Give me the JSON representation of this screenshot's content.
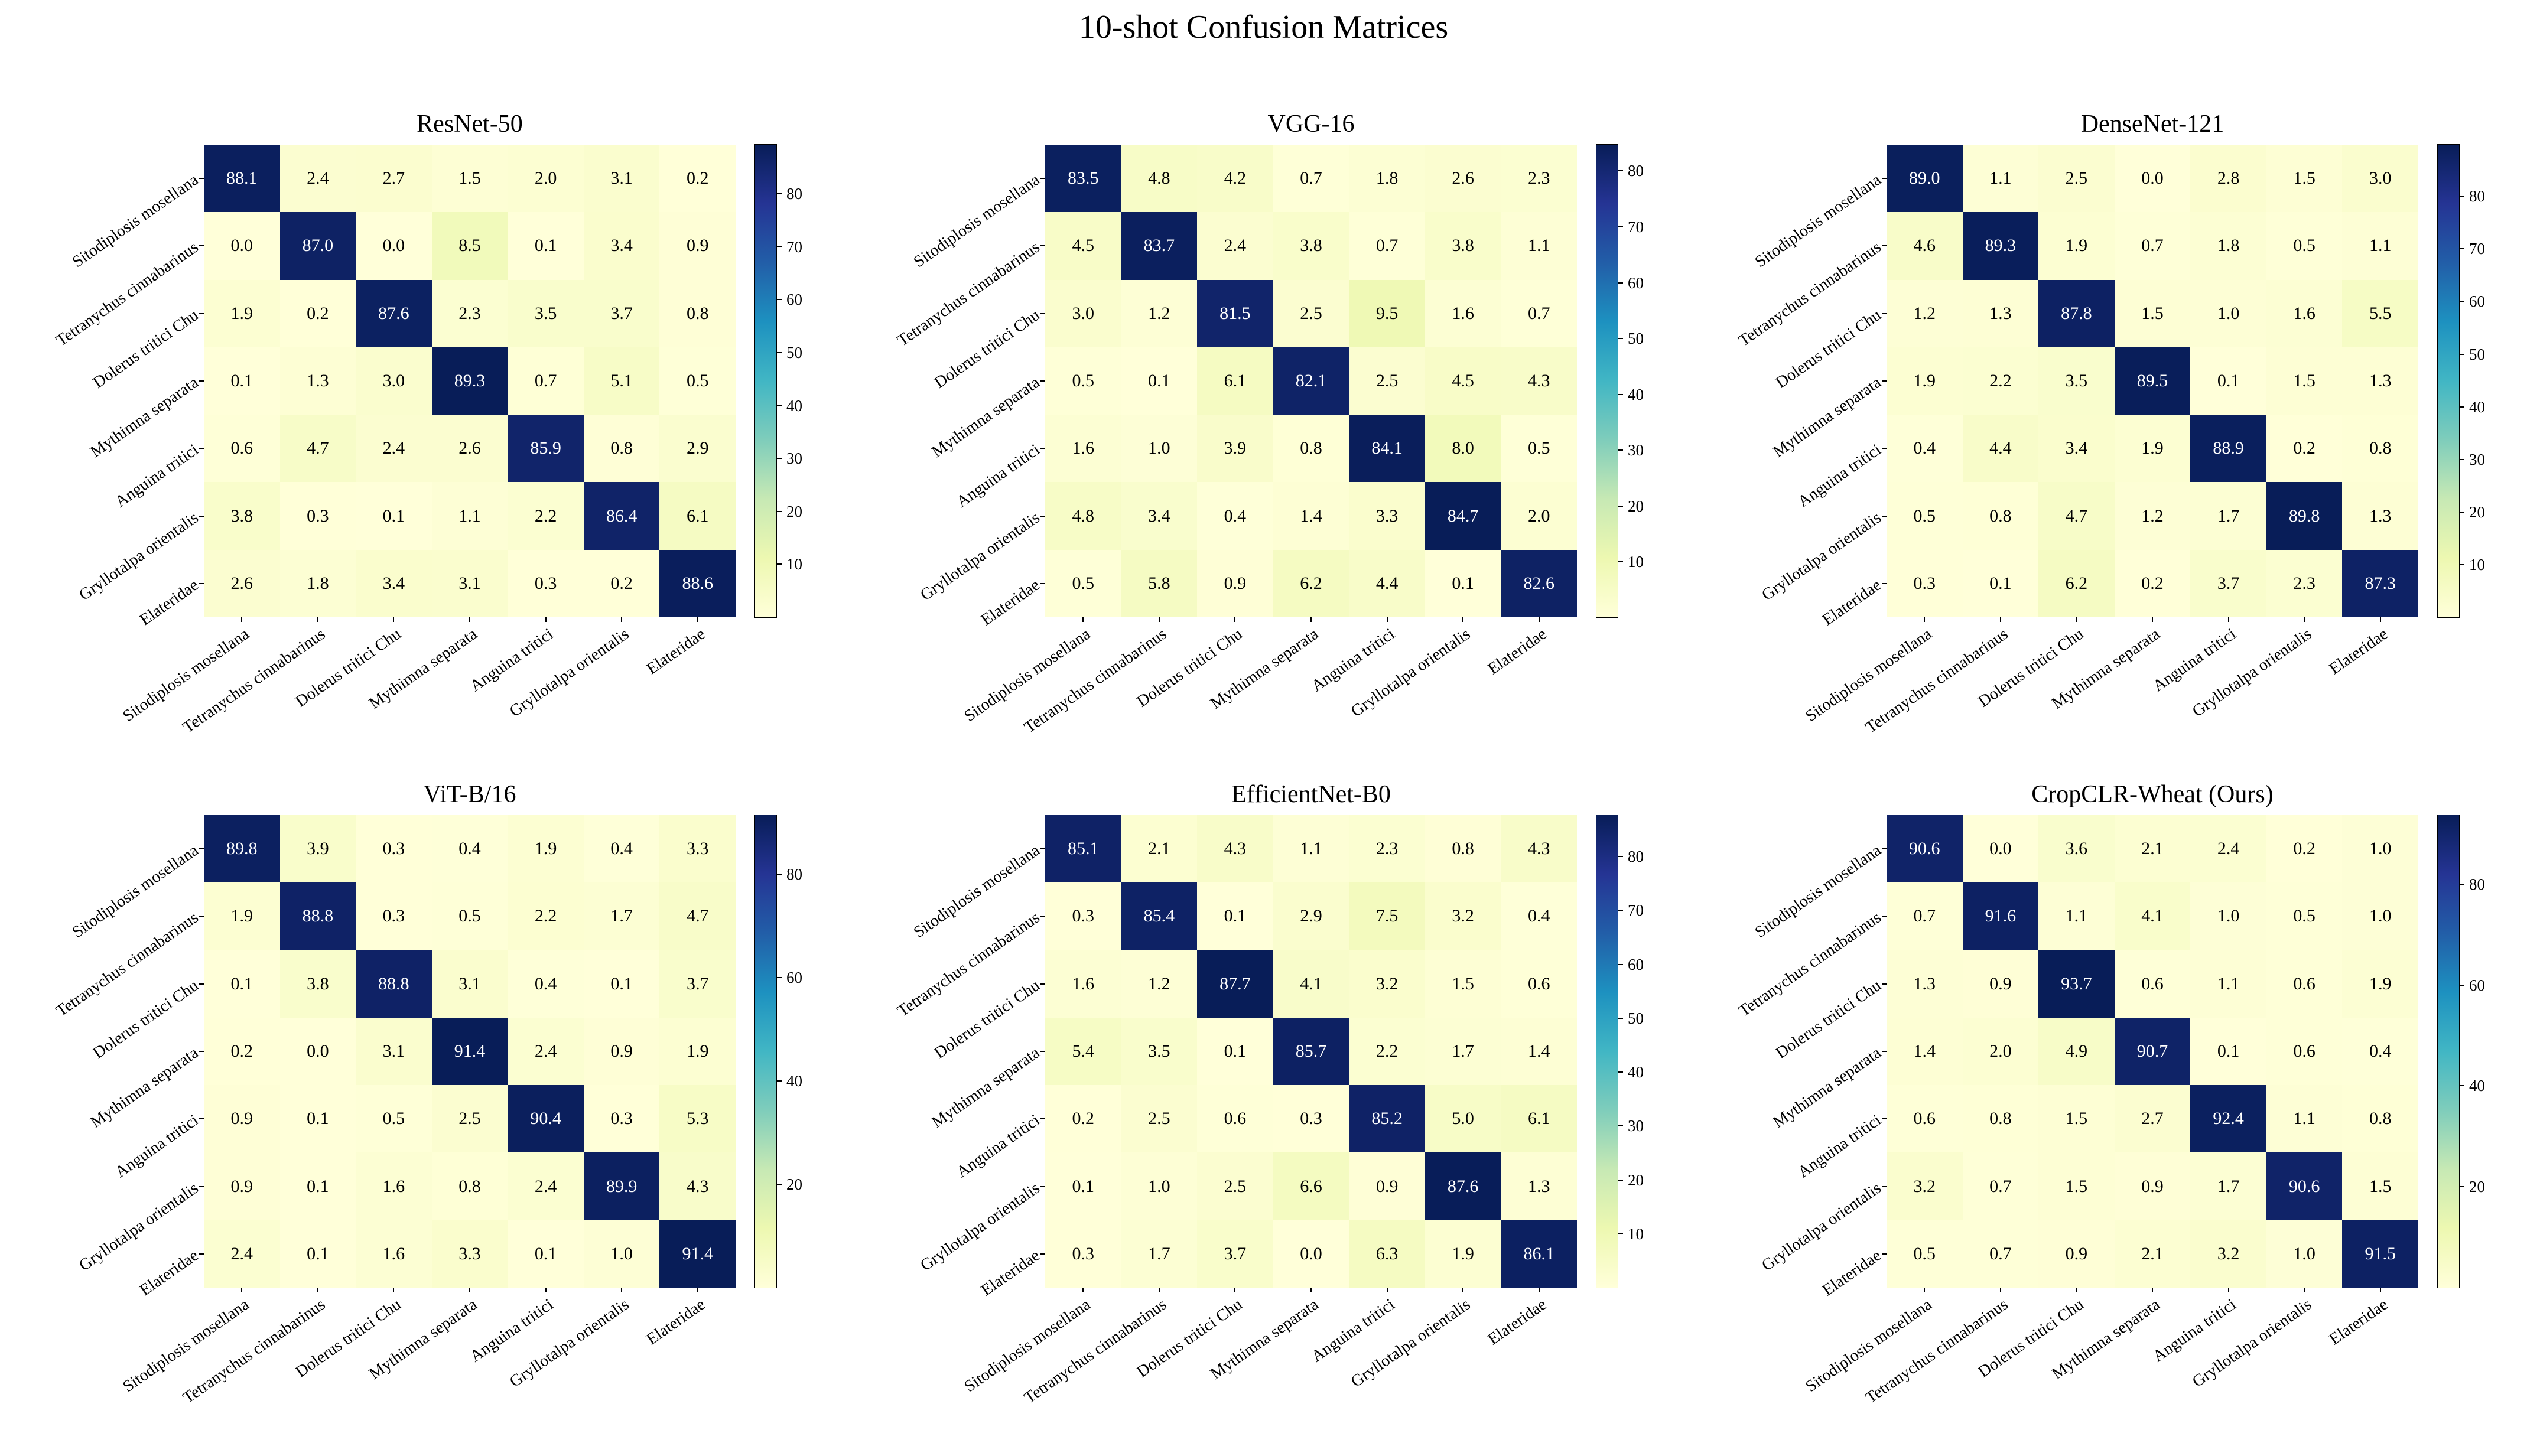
{
  "figure": {
    "title": "10-shot Confusion Matrices"
  },
  "colormap": {
    "name": "YlGnBu",
    "stops": [
      "#ffffd9",
      "#edf8b1",
      "#c7e9b4",
      "#7fcdbb",
      "#41b6c4",
      "#1d91c0",
      "#225ea8",
      "#253494",
      "#081d58"
    ]
  },
  "chart_data": {
    "type": "heatmap",
    "layout": "2x3 grid of confusion matrices",
    "categories": [
      "Sitodiplosis mosellana",
      "Tetranychus cinnabarinus",
      "Dolerus tritici Chu",
      "Mythimna separata",
      "Anguina tritici",
      "Gryllotalpa orientalis",
      "Elateridae"
    ],
    "subplots": [
      {
        "title": "ResNet-50",
        "colorbar_ticks": [
          10,
          20,
          30,
          40,
          50,
          60,
          70,
          80
        ],
        "values": [
          [
            88.1,
            2.4,
            2.7,
            1.5,
            2.0,
            3.1,
            0.2
          ],
          [
            0.0,
            87.0,
            0.0,
            8.5,
            0.1,
            3.4,
            0.9
          ],
          [
            1.9,
            0.2,
            87.6,
            2.3,
            3.5,
            3.7,
            0.8
          ],
          [
            0.1,
            1.3,
            3.0,
            89.3,
            0.7,
            5.1,
            0.5
          ],
          [
            0.6,
            4.7,
            2.4,
            2.6,
            85.9,
            0.8,
            2.9
          ],
          [
            3.8,
            0.3,
            0.1,
            1.1,
            2.2,
            86.4,
            6.1
          ],
          [
            2.6,
            1.8,
            3.4,
            3.1,
            0.3,
            0.2,
            88.6
          ]
        ]
      },
      {
        "title": "VGG-16",
        "colorbar_ticks": [
          10,
          20,
          30,
          40,
          50,
          60,
          70,
          80
        ],
        "values": [
          [
            83.5,
            4.8,
            4.2,
            0.7,
            1.8,
            2.6,
            2.3
          ],
          [
            4.5,
            83.7,
            2.4,
            3.8,
            0.7,
            3.8,
            1.1
          ],
          [
            3.0,
            1.2,
            81.5,
            2.5,
            9.5,
            1.6,
            0.7
          ],
          [
            0.5,
            0.1,
            6.1,
            82.1,
            2.5,
            4.5,
            4.3
          ],
          [
            1.6,
            1.0,
            3.9,
            0.8,
            84.1,
            8.0,
            0.5
          ],
          [
            4.8,
            3.4,
            0.4,
            1.4,
            3.3,
            84.7,
            2.0
          ],
          [
            0.5,
            5.8,
            0.9,
            6.2,
            4.4,
            0.1,
            82.6
          ]
        ]
      },
      {
        "title": "DenseNet-121",
        "colorbar_ticks": [
          10,
          20,
          30,
          40,
          50,
          60,
          70,
          80
        ],
        "values": [
          [
            89.0,
            1.1,
            2.5,
            0.0,
            2.8,
            1.5,
            3.0
          ],
          [
            4.6,
            89.3,
            1.9,
            0.7,
            1.8,
            0.5,
            1.1
          ],
          [
            1.2,
            1.3,
            87.8,
            1.5,
            1.0,
            1.6,
            5.5
          ],
          [
            1.9,
            2.2,
            3.5,
            89.5,
            0.1,
            1.5,
            1.3
          ],
          [
            0.4,
            4.4,
            3.4,
            1.9,
            88.9,
            0.2,
            0.8
          ],
          [
            0.5,
            0.8,
            4.7,
            1.2,
            1.7,
            89.8,
            1.3
          ],
          [
            0.3,
            0.1,
            6.2,
            0.2,
            3.7,
            2.3,
            87.3
          ]
        ]
      },
      {
        "title": "ViT-B/16",
        "colorbar_ticks": [
          20,
          40,
          60,
          80
        ],
        "values": [
          [
            89.8,
            3.9,
            0.3,
            0.4,
            1.9,
            0.4,
            3.3
          ],
          [
            1.9,
            88.8,
            0.3,
            0.5,
            2.2,
            1.7,
            4.7
          ],
          [
            0.1,
            3.8,
            88.8,
            3.1,
            0.4,
            0.1,
            3.7
          ],
          [
            0.2,
            0.0,
            3.1,
            91.4,
            2.4,
            0.9,
            1.9
          ],
          [
            0.9,
            0.1,
            0.5,
            2.5,
            90.4,
            0.3,
            5.3
          ],
          [
            0.9,
            0.1,
            1.6,
            0.8,
            2.4,
            89.9,
            4.3
          ],
          [
            2.4,
            0.1,
            1.6,
            3.3,
            0.1,
            1.0,
            91.4
          ]
        ]
      },
      {
        "title": "EfficientNet-B0",
        "colorbar_ticks": [
          10,
          20,
          30,
          40,
          50,
          60,
          70,
          80
        ],
        "values": [
          [
            85.1,
            2.1,
            4.3,
            1.1,
            2.3,
            0.8,
            4.3
          ],
          [
            0.3,
            85.4,
            0.1,
            2.9,
            7.5,
            3.2,
            0.4
          ],
          [
            1.6,
            1.2,
            87.7,
            4.1,
            3.2,
            1.5,
            0.6
          ],
          [
            5.4,
            3.5,
            0.1,
            85.7,
            2.2,
            1.7,
            1.4
          ],
          [
            0.2,
            2.5,
            0.6,
            0.3,
            85.2,
            5.0,
            6.1
          ],
          [
            0.1,
            1.0,
            2.5,
            6.6,
            0.9,
            87.6,
            1.3
          ],
          [
            0.3,
            1.7,
            3.7,
            0.0,
            6.3,
            1.9,
            86.1
          ]
        ]
      },
      {
        "title": "CropCLR-Wheat (Ours)",
        "colorbar_ticks": [
          20,
          40,
          60,
          80
        ],
        "values": [
          [
            90.6,
            0.0,
            3.6,
            2.1,
            2.4,
            0.2,
            1.0
          ],
          [
            0.7,
            91.6,
            1.1,
            4.1,
            1.0,
            0.5,
            1.0
          ],
          [
            1.3,
            0.9,
            93.7,
            0.6,
            1.1,
            0.6,
            1.9
          ],
          [
            1.4,
            2.0,
            4.9,
            90.7,
            0.1,
            0.6,
            0.4
          ],
          [
            0.6,
            0.8,
            1.5,
            2.7,
            92.4,
            1.1,
            0.8
          ],
          [
            3.2,
            0.7,
            1.5,
            0.9,
            1.7,
            90.6,
            1.5
          ],
          [
            0.5,
            0.7,
            0.9,
            2.1,
            3.2,
            1.0,
            91.5
          ]
        ]
      }
    ]
  }
}
